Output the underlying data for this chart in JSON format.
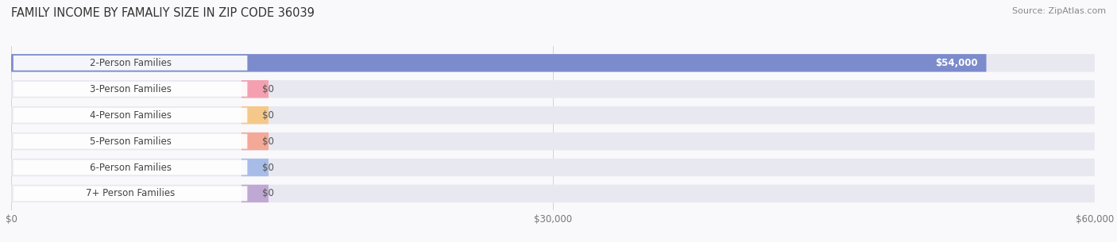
{
  "title": "FAMILY INCOME BY FAMALIY SIZE IN ZIP CODE 36039",
  "source": "Source: ZipAtlas.com",
  "categories": [
    "2-Person Families",
    "3-Person Families",
    "4-Person Families",
    "5-Person Families",
    "6-Person Families",
    "7+ Person Families"
  ],
  "values": [
    54000,
    0,
    0,
    0,
    0,
    0
  ],
  "bar_colors": [
    "#7b8bcc",
    "#f4a0b0",
    "#f5c88a",
    "#f4a898",
    "#a8bce8",
    "#c0a8d5"
  ],
  "value_labels": [
    "$54,000",
    "$0",
    "$0",
    "$0",
    "$0",
    "$0"
  ],
  "xlim": [
    0,
    60000
  ],
  "xticks": [
    0,
    30000,
    60000
  ],
  "xtick_labels": [
    "$0",
    "$30,000",
    "$60,000"
  ],
  "bg_color": "#f9f9fb",
  "bar_bg_color": "#e8e8f0",
  "title_fontsize": 10.5,
  "source_fontsize": 8,
  "label_fontsize": 8.5,
  "value_fontsize": 8.5,
  "label_box_color": "#ffffff",
  "label_text_color": "#444444",
  "value_text_color_inside": "#ffffff",
  "value_text_color_outside": "#555555"
}
